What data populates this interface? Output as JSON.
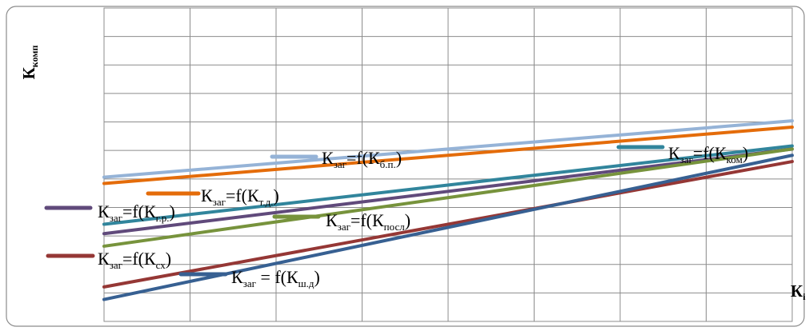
{
  "chart_data": {
    "type": "line",
    "ylabel": {
      "main": "К",
      "sub": "комп"
    },
    "xlabel": {
      "main": "К",
      "sub": "i"
    },
    "xlim": [
      0,
      10
    ],
    "ylim": [
      0,
      10
    ],
    "grid": true,
    "legend": "inline labels beside lines",
    "series": [
      {
        "name": "б.п.",
        "color": "#95B3D7",
        "x": [
          0,
          10
        ],
        "y": [
          4.6,
          6.4
        ]
      },
      {
        "name": "т.д.",
        "color": "#E46C0A",
        "x": [
          0,
          10
        ],
        "y": [
          4.4,
          6.2
        ]
      },
      {
        "name": "ком",
        "color": "#31859C",
        "x": [
          0,
          10
        ],
        "y": [
          3.1,
          5.6
        ]
      },
      {
        "name": "г.р.",
        "color": "#604A7B",
        "x": [
          0,
          10
        ],
        "y": [
          2.8,
          5.5
        ]
      },
      {
        "name": "посл",
        "color": "#77933C",
        "x": [
          0,
          10
        ],
        "y": [
          2.4,
          5.5
        ]
      },
      {
        "name": "сх",
        "color": "#953735",
        "x": [
          0,
          10
        ],
        "y": [
          1.1,
          5.1
        ]
      },
      {
        "name": "ш.д",
        "color": "#376092",
        "x": [
          0,
          10
        ],
        "y": [
          0.7,
          5.3
        ]
      }
    ],
    "labels": [
      {
        "series": "б.п.",
        "pre": "К",
        "sub1": "заг",
        "mid": "=f(К",
        "sub2": "б.п.",
        "post": ")"
      },
      {
        "series": "т.д.",
        "pre": "К",
        "sub1": "заг",
        "mid": "=f(К",
        "sub2": "т.д.",
        "post": ")"
      },
      {
        "series": "ком",
        "pre": "К",
        "sub1": "заг",
        "mid": "=f(К",
        "sub2": "ком",
        "post": ")"
      },
      {
        "series": "г.р.",
        "pre": "К",
        "sub1": "заг",
        "mid": "=f(К",
        "sub2": "г.р.",
        "post": ")"
      },
      {
        "series": "посл",
        "pre": "К",
        "sub1": "заг",
        "mid": "=f(К",
        "sub2": "посл",
        "post": ")"
      },
      {
        "series": "сх",
        "pre": "К",
        "sub1": "заг",
        "mid": "=f(К",
        "sub2": "сх",
        "post": ")"
      },
      {
        "series": "ш.д",
        "pre": "К",
        "sub1": "заг",
        "mid": " = f(К",
        "sub2": "ш.д",
        "post": ")"
      }
    ]
  }
}
